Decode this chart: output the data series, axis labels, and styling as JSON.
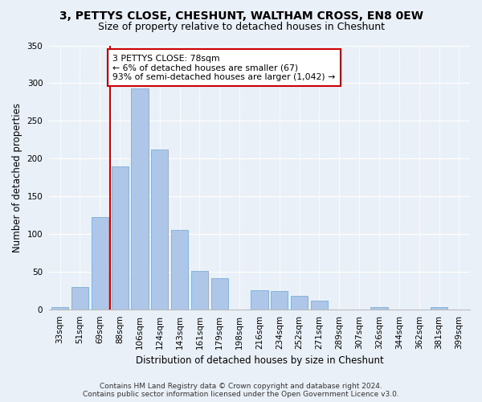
{
  "title": "3, PETTYS CLOSE, CHESHUNT, WALTHAM CROSS, EN8 0EW",
  "subtitle": "Size of property relative to detached houses in Cheshunt",
  "xlabel": "Distribution of detached houses by size in Cheshunt",
  "ylabel": "Number of detached properties",
  "footer_line1": "Contains HM Land Registry data © Crown copyright and database right 2024.",
  "footer_line2": "Contains public sector information licensed under the Open Government Licence v3.0.",
  "categories": [
    "33sqm",
    "51sqm",
    "69sqm",
    "88sqm",
    "106sqm",
    "124sqm",
    "143sqm",
    "161sqm",
    "179sqm",
    "198sqm",
    "216sqm",
    "234sqm",
    "252sqm",
    "271sqm",
    "289sqm",
    "307sqm",
    "326sqm",
    "344sqm",
    "362sqm",
    "381sqm",
    "399sqm"
  ],
  "values": [
    4,
    30,
    123,
    190,
    293,
    212,
    106,
    51,
    42,
    0,
    26,
    25,
    18,
    12,
    0,
    0,
    3,
    0,
    0,
    3,
    0
  ],
  "bar_color": "#aec6e8",
  "bar_edge_color": "#7aadd4",
  "vline_x": 2.5,
  "vline_color": "#cc0000",
  "annotation_text": "3 PETTYS CLOSE: 78sqm\n← 6% of detached houses are smaller (67)\n93% of semi-detached houses are larger (1,042) →",
  "annotation_box_color": "#ffffff",
  "annotation_box_edge_color": "#cc0000",
  "ylim": [
    0,
    350
  ],
  "yticks": [
    0,
    50,
    100,
    150,
    200,
    250,
    300,
    350
  ],
  "bg_color": "#eaf0f8",
  "plot_bg_color": "#eaf0f8",
  "title_fontsize": 10,
  "subtitle_fontsize": 9,
  "xlabel_fontsize": 8.5,
  "ylabel_fontsize": 8.5,
  "tick_fontsize": 7.5,
  "footer_fontsize": 6.5
}
